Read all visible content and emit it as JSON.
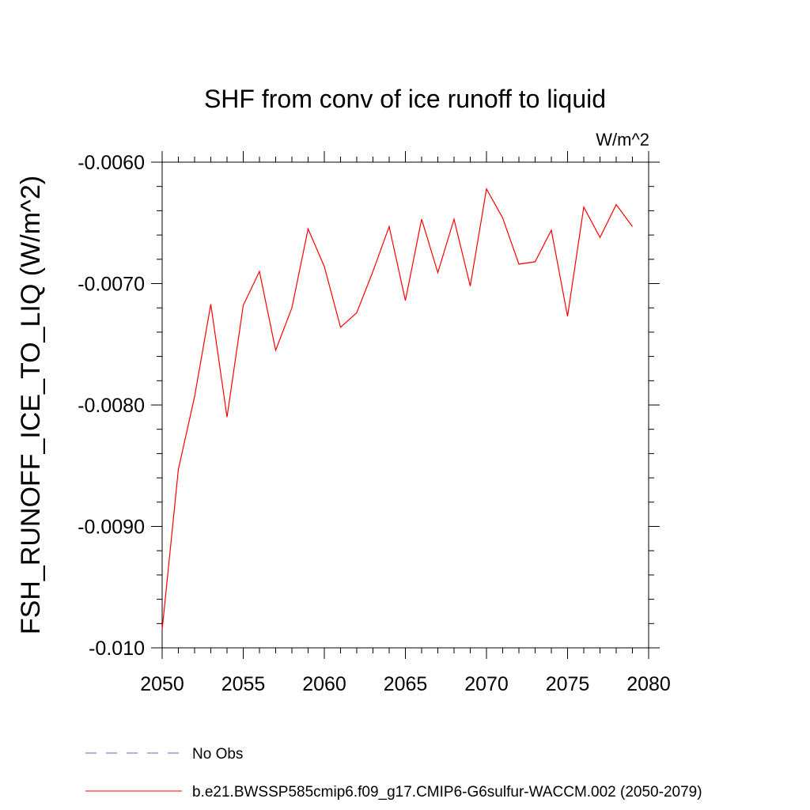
{
  "chart_data": {
    "type": "line",
    "title": "SHF from conv of ice runoff to liquid",
    "units": "W/m^2",
    "ylabel": "FSH_RUNOFF_ICE_TO_LIQ  (W/m^2)",
    "xlabel": "",
    "xlim": [
      2050,
      2080
    ],
    "ylim": [
      -0.01,
      -0.006
    ],
    "x_ticks": [
      2050,
      2055,
      2060,
      2065,
      2070,
      2075,
      2080
    ],
    "x_tick_labels": [
      "2050",
      "2055",
      "2060",
      "2065",
      "2070",
      "2075",
      "2080"
    ],
    "y_ticks": [
      -0.01,
      -0.009,
      -0.008,
      -0.007,
      -0.006
    ],
    "y_tick_labels": [
      "-0.010",
      "-0.0090",
      "-0.0080",
      "-0.0070",
      "-0.0060"
    ],
    "grid": false,
    "legend_position": "bottom",
    "series": [
      {
        "name": "b.e21.BWSSP585cmip6.f09_g17.CMIP6-G6sulfur-WACCM.002 (2050-2079)",
        "color": "#ff0000",
        "style": "solid",
        "x": [
          2050,
          2051,
          2052,
          2053,
          2054,
          2055,
          2056,
          2057,
          2058,
          2059,
          2060,
          2061,
          2062,
          2063,
          2064,
          2065,
          2066,
          2067,
          2068,
          2069,
          2070,
          2071,
          2072,
          2073,
          2074,
          2075,
          2076,
          2077,
          2078,
          2079
        ],
        "values": [
          -0.00985,
          -0.00853,
          -0.00793,
          -0.00717,
          -0.0081,
          -0.00718,
          -0.0069,
          -0.00755,
          -0.0072,
          -0.00655,
          -0.00686,
          -0.00736,
          -0.00724,
          -0.0069,
          -0.00653,
          -0.00714,
          -0.00647,
          -0.00691,
          -0.00647,
          -0.00702,
          -0.00622,
          -0.00646,
          -0.00684,
          -0.00682,
          -0.00656,
          -0.00727,
          -0.00637,
          -0.00662,
          -0.00635,
          -0.00653
        ]
      }
    ],
    "legend": [
      {
        "label": "No Obs",
        "color": "#6f5fb8",
        "style": "dashed"
      },
      {
        "label": "b.e21.BWSSP585cmip6.f09_g17.CMIP6-G6sulfur-WACCM.002 (2050-2079)",
        "color": "#ff0000",
        "style": "solid"
      }
    ]
  }
}
